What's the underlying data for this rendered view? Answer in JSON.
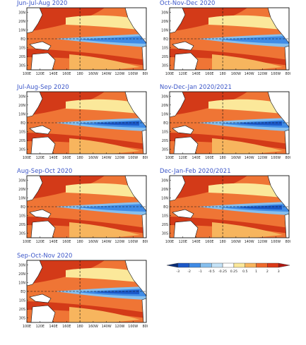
{
  "panels": [
    {
      "title": "Jun-Jul-Aug 2020"
    },
    {
      "title": "Oct-Nov-Dec 2020"
    },
    {
      "title": "Jul-Aug-Sep 2020"
    },
    {
      "title": "Nov-Dec-Jan 2020/2021"
    },
    {
      "title": "Aug-Sep-Oct 2020"
    },
    {
      "title": "Dec-Jan-Feb 2020/2021"
    },
    {
      "title": "Sep-Oct-Nov 2020"
    }
  ],
  "lat_labels": [
    "30N",
    "20N",
    "10N",
    "EQ",
    "10S",
    "20S",
    "30S"
  ],
  "lon_labels": [
    "100E",
    "120E",
    "140E",
    "160E",
    "180",
    "160W",
    "140W",
    "120W",
    "100W",
    "80W"
  ],
  "colorbar": {
    "ticks": [
      "-3",
      "-2",
      "-1",
      "-0.5",
      "-0.25",
      "0.25",
      "0.5",
      "1",
      "2",
      "3"
    ],
    "colors": [
      "#0a2d78",
      "#1b58c8",
      "#3f8be6",
      "#86bfee",
      "#c4e2f6",
      "#ffffff",
      "#fbe89a",
      "#f7b55e",
      "#ef6a2c",
      "#dc3a18",
      "#b01810"
    ]
  }
}
